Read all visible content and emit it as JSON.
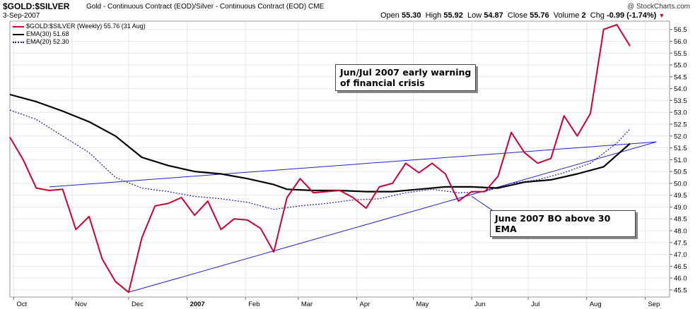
{
  "header": {
    "symbol": "$GOLD:$SILVER",
    "description": "Gold - Continuous Contract (EOD)/Silver - Continuous Contract (EOD)",
    "exchange": "CME",
    "date": "3-Sep-2007",
    "open_label": "Open",
    "open": "55.30",
    "high_label": "High",
    "high": "55.92",
    "low_label": "Low",
    "low": "54.87",
    "close_label": "Close",
    "close": "55.76",
    "volume_label": "Volume",
    "volume": "2",
    "chg_label": "Chg",
    "chg": "-0.99 (-1.74%)",
    "chg_arrow": "▼",
    "watermark": "@ StockCharts.com"
  },
  "legend": [
    {
      "text": "$GOLD:$SILVER (Weekly) 55.76 (31 Aug)",
      "color": "#cc0033",
      "style": "solid"
    },
    {
      "text": "EMA(30) 51.68",
      "color": "#000000",
      "style": "solid"
    },
    {
      "text": "EMA(20) 52.30",
      "color": "#1a1aa0",
      "style": "dotted"
    }
  ],
  "annotations": [
    {
      "lines": [
        "Jun/Jul 2007 early warning",
        "of financial crisis"
      ]
    },
    {
      "lines": [
        "June 2007 BO above 30",
        "EMA"
      ]
    }
  ],
  "colors": {
    "price": "#cc0033",
    "ema30": "#000000",
    "ema20": "#1a1aa0",
    "trendline": "#2020d0",
    "grid": "#e6e6e6"
  },
  "chart_data": {
    "type": "line",
    "ylim": [
      45.2,
      56.85
    ],
    "yticks": [
      45.5,
      46.0,
      46.5,
      47.0,
      47.5,
      48.0,
      48.5,
      49.0,
      49.5,
      50.0,
      50.5,
      51.0,
      51.5,
      52.0,
      52.5,
      53.0,
      53.5,
      54.0,
      54.5,
      55.0,
      55.5,
      56.0,
      56.5
    ],
    "x_axis": {
      "unit": "week",
      "range": [
        "2006-09-29",
        "2007-09-14"
      ],
      "tick_labels": [
        {
          "label": "Oct",
          "date": "2006-10-01"
        },
        {
          "label": "Nov",
          "date": "2006-11-01"
        },
        {
          "label": "Dec",
          "date": "2006-12-01"
        },
        {
          "label": "2007",
          "date": "2007-01-01",
          "bold": true
        },
        {
          "label": "Feb",
          "date": "2007-02-01"
        },
        {
          "label": "Mar",
          "date": "2007-03-01"
        },
        {
          "label": "Apr",
          "date": "2007-04-01"
        },
        {
          "label": "May",
          "date": "2007-05-01"
        },
        {
          "label": "Jun",
          "date": "2007-06-01"
        },
        {
          "label": "Jul",
          "date": "2007-07-01"
        },
        {
          "label": "Aug",
          "date": "2007-08-01"
        },
        {
          "label": "Sep",
          "date": "2007-09-01"
        }
      ]
    },
    "series": [
      {
        "name": "$GOLD:$SILVER (Weekly)",
        "color": "#cc0033",
        "style": "solid",
        "points": [
          [
            "2006-09-29",
            51.95
          ],
          [
            "2006-10-06",
            51.0
          ],
          [
            "2006-10-13",
            49.8
          ],
          [
            "2006-10-20",
            49.7
          ],
          [
            "2006-10-27",
            49.75
          ],
          [
            "2006-11-03",
            48.05
          ],
          [
            "2006-11-10",
            48.6
          ],
          [
            "2006-11-17",
            46.8
          ],
          [
            "2006-11-24",
            45.85
          ],
          [
            "2006-12-01",
            45.4
          ],
          [
            "2006-12-08",
            47.7
          ],
          [
            "2006-12-15",
            49.05
          ],
          [
            "2006-12-22",
            49.15
          ],
          [
            "2006-12-29",
            49.4
          ],
          [
            "2007-01-05",
            48.65
          ],
          [
            "2007-01-12",
            49.25
          ],
          [
            "2007-01-19",
            48.05
          ],
          [
            "2007-01-26",
            48.5
          ],
          [
            "2007-02-02",
            48.45
          ],
          [
            "2007-02-09",
            48.1
          ],
          [
            "2007-02-16",
            47.1
          ],
          [
            "2007-02-23",
            49.4
          ],
          [
            "2007-03-02",
            50.2
          ],
          [
            "2007-03-09",
            49.6
          ],
          [
            "2007-03-16",
            49.65
          ],
          [
            "2007-03-23",
            49.7
          ],
          [
            "2007-03-30",
            49.4
          ],
          [
            "2007-04-06",
            48.95
          ],
          [
            "2007-04-13",
            49.85
          ],
          [
            "2007-04-20",
            50.0
          ],
          [
            "2007-04-27",
            50.85
          ],
          [
            "2007-05-04",
            50.45
          ],
          [
            "2007-05-11",
            50.85
          ],
          [
            "2007-05-18",
            50.4
          ],
          [
            "2007-05-25",
            49.25
          ],
          [
            "2007-06-01",
            49.65
          ],
          [
            "2007-06-08",
            49.65
          ],
          [
            "2007-06-15",
            50.3
          ],
          [
            "2007-06-22",
            52.15
          ],
          [
            "2007-06-29",
            51.3
          ],
          [
            "2007-07-06",
            50.85
          ],
          [
            "2007-07-13",
            51.05
          ],
          [
            "2007-07-20",
            52.85
          ],
          [
            "2007-07-27",
            52.0
          ],
          [
            "2007-08-03",
            52.95
          ],
          [
            "2007-08-10",
            56.5
          ],
          [
            "2007-08-17",
            56.7
          ],
          [
            "2007-08-24",
            55.8
          ]
        ]
      },
      {
        "name": "EMA(30)",
        "color": "#000000",
        "style": "solid",
        "points": [
          [
            "2006-09-29",
            53.75
          ],
          [
            "2006-10-13",
            53.45
          ],
          [
            "2006-10-27",
            53.05
          ],
          [
            "2006-11-10",
            52.6
          ],
          [
            "2006-11-24",
            52.0
          ],
          [
            "2006-12-08",
            51.1
          ],
          [
            "2006-12-22",
            50.75
          ],
          [
            "2007-01-05",
            50.5
          ],
          [
            "2007-01-19",
            50.4
          ],
          [
            "2007-02-02",
            50.2
          ],
          [
            "2007-02-16",
            49.95
          ],
          [
            "2007-02-23",
            49.75
          ],
          [
            "2007-03-09",
            49.7
          ],
          [
            "2007-03-23",
            49.7
          ],
          [
            "2007-04-06",
            49.65
          ],
          [
            "2007-04-20",
            49.65
          ],
          [
            "2007-05-04",
            49.75
          ],
          [
            "2007-05-18",
            49.85
          ],
          [
            "2007-06-01",
            49.85
          ],
          [
            "2007-06-15",
            49.8
          ],
          [
            "2007-06-29",
            50.05
          ],
          [
            "2007-07-13",
            50.15
          ],
          [
            "2007-07-27",
            50.4
          ],
          [
            "2007-08-10",
            50.7
          ],
          [
            "2007-08-24",
            51.68
          ]
        ]
      },
      {
        "name": "EMA(20)",
        "color": "#1a1aa0",
        "style": "dotted",
        "points": [
          [
            "2006-09-29",
            53.1
          ],
          [
            "2006-10-13",
            52.7
          ],
          [
            "2006-10-27",
            52.0
          ],
          [
            "2006-11-10",
            51.3
          ],
          [
            "2006-11-24",
            50.25
          ],
          [
            "2006-12-08",
            49.8
          ],
          [
            "2006-12-22",
            49.65
          ],
          [
            "2007-01-05",
            49.45
          ],
          [
            "2007-01-19",
            49.35
          ],
          [
            "2007-02-02",
            49.2
          ],
          [
            "2007-02-16",
            48.9
          ],
          [
            "2007-03-02",
            49.05
          ],
          [
            "2007-03-16",
            49.15
          ],
          [
            "2007-03-30",
            49.3
          ],
          [
            "2007-04-13",
            49.35
          ],
          [
            "2007-04-27",
            49.6
          ],
          [
            "2007-05-11",
            49.75
          ],
          [
            "2007-05-25",
            49.6
          ],
          [
            "2007-06-08",
            49.65
          ],
          [
            "2007-06-22",
            50.0
          ],
          [
            "2007-07-06",
            50.15
          ],
          [
            "2007-07-20",
            50.45
          ],
          [
            "2007-08-03",
            50.85
          ],
          [
            "2007-08-17",
            51.7
          ],
          [
            "2007-08-24",
            52.3
          ]
        ]
      }
    ],
    "trendlines": [
      {
        "from": [
          "2006-10-20",
          49.85
        ],
        "to": [
          "2007-09-07",
          51.75
        ]
      },
      {
        "from": [
          "2006-12-01",
          45.4
        ],
        "to": [
          "2007-09-07",
          51.75
        ]
      },
      {
        "from": [
          "2007-06-01",
          49.45
        ],
        "to": [
          "2007-06-15",
          48.7
        ],
        "role": "pointer"
      }
    ],
    "grid": true
  }
}
